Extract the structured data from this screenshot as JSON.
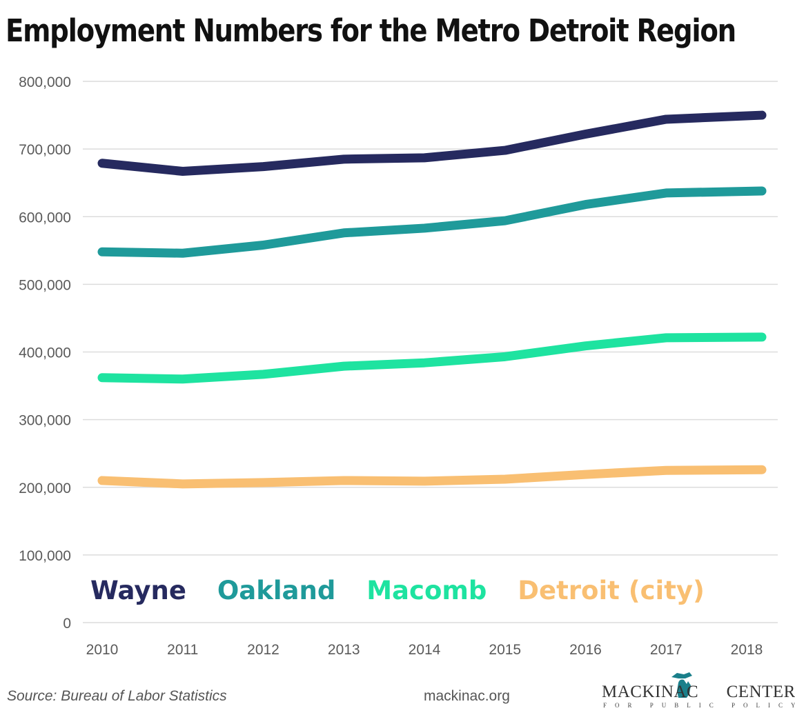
{
  "chart_data": {
    "type": "line",
    "title": "Employment Numbers for the Metro Detroit Region",
    "xlabel": "",
    "ylabel": "",
    "x": [
      "2010",
      "2011",
      "2012",
      "2013",
      "2014",
      "2015",
      "2016",
      "2017",
      "2018"
    ],
    "ylim": [
      0,
      800000
    ],
    "yticks": [
      "0",
      "100,000",
      "200,000",
      "300,000",
      "400,000",
      "500,000",
      "600,000",
      "700,000",
      "800,000"
    ],
    "grid": true,
    "legend_position": "bottom-center",
    "series": [
      {
        "name": "Wayne",
        "color": "#262a5f",
        "values": [
          679000,
          667000,
          674000,
          685000,
          687000,
          698000,
          722000,
          744000,
          750000
        ]
      },
      {
        "name": "Oakland",
        "color": "#1f9a9a",
        "values": [
          548000,
          546000,
          558000,
          576000,
          583000,
          594000,
          618000,
          635000,
          638000
        ]
      },
      {
        "name": "Macomb",
        "color": "#1ee3a0",
        "values": [
          362000,
          360000,
          367000,
          379000,
          384000,
          393000,
          409000,
          421000,
          422000
        ]
      },
      {
        "name": "Detroit (city)",
        "color": "#f9bf72",
        "values": [
          210000,
          205000,
          207000,
          210000,
          209000,
          212000,
          219000,
          225000,
          226000
        ]
      }
    ]
  },
  "footer": {
    "source": "Source: Bureau of Labor Statistics",
    "site": "mackinac.org",
    "logo_main": "MACKINAC CENTER",
    "logo_sub": "FOR PUBLIC POLICY"
  }
}
